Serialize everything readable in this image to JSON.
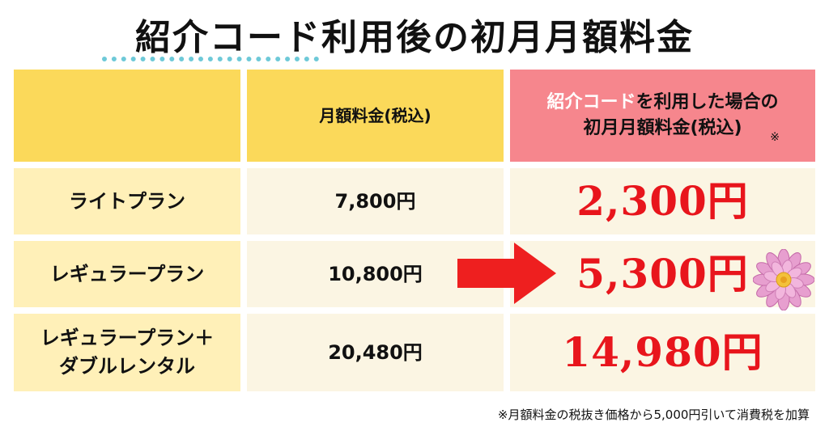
{
  "title": "紹介コード利用後の初月月額料金",
  "headers": {
    "plan": "",
    "monthly_fee": "月額料金(税込)",
    "referral_line1_highlight": "紹介コード",
    "referral_line1_rest": "を利用した場合の",
    "referral_line2": "初月月額料金(税込)",
    "note_mark": "※"
  },
  "rows": [
    {
      "plan": "ライトプラン",
      "plan_line2": "",
      "fee": "7,800円",
      "referral_fee": "2,300円"
    },
    {
      "plan": "レギュラープラン",
      "plan_line2": "",
      "fee": "10,800円",
      "referral_fee": "5,300円"
    },
    {
      "plan": "レギュラープラン＋",
      "plan_line2": "ダブルレンタル",
      "fee": "20,480円",
      "referral_fee": "14,980円"
    }
  ],
  "footnote": "※月額料金の税抜き価格から5,000円引いて消費税を加算",
  "colors": {
    "header_yellow": "#fbd95a",
    "header_pink": "#f6868d",
    "price_red": "#e8151c",
    "arrow_red": "#ee1f1f",
    "underline_dots": "#6ec9d8"
  },
  "icons": {
    "arrow": "right-arrow-icon",
    "flower": "flower-icon"
  }
}
